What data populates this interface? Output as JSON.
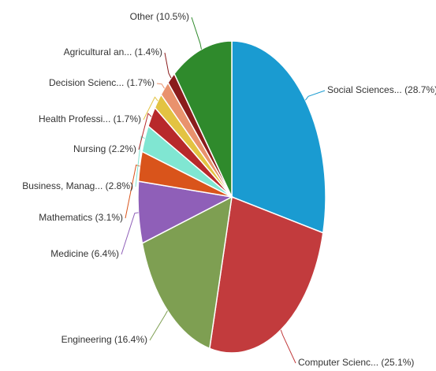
{
  "chart_data": {
    "type": "pie",
    "categories": [
      "Social Sciences...",
      "Computer Scienc...",
      "Engineering",
      "Medicine",
      "Mathematics",
      "Business, Manag...",
      "Nursing",
      "Health Professi...",
      "Decision Scienc...",
      "Agricultural an...",
      "Other"
    ],
    "values": [
      28.7,
      25.1,
      16.4,
      6.4,
      3.1,
      2.8,
      2.2,
      1.7,
      1.7,
      1.4,
      10.5
    ],
    "value_labels": [
      "(28.7%)",
      "(25.1%)",
      "(16.4%)",
      "(6.4%)",
      "(3.1%)",
      "(2.8%)",
      "(2.2%)",
      "(1.7%)",
      "(1.7%)",
      "(1.4%)",
      "(10.5%)"
    ],
    "colors": [
      "#1a9bd1",
      "#c23b3d",
      "#7e9f52",
      "#8f5fb8",
      "#d9541b",
      "#80e6d2",
      "#b8292b",
      "#e3c342",
      "#e9926d",
      "#8a1c1c",
      "#2f8a2c"
    ]
  }
}
